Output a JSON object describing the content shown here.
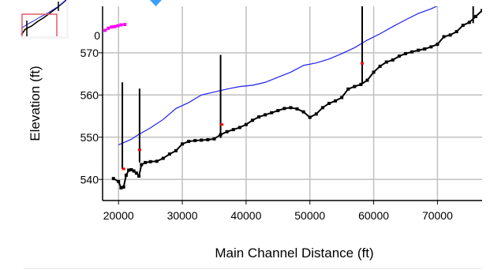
{
  "chart_data": {
    "type": "line",
    "xlabel": "Main Channel Distance (ft)",
    "ylabel": "Elevation (ft)",
    "xlim": [
      17500,
      77000
    ],
    "ylim": [
      535,
      581
    ],
    "grid": true,
    "x_ticks": [
      "20000",
      "30000",
      "40000",
      "50000",
      "60000",
      "70000"
    ],
    "y_ticks": [
      "540",
      "550",
      "560",
      "570"
    ],
    "y_tick_partial": "0",
    "colors": {
      "ws": "#1f1ff0",
      "ground": "#000000",
      "marker": "#ff0000",
      "inset_marker": "#ff00ff",
      "inset_box": "#e05a6a",
      "frame": "#000000"
    },
    "series": [
      {
        "key": "water_surface",
        "x": [
          20000,
          22000,
          23000,
          25000,
          27000,
          29000,
          31000,
          33000,
          35000,
          37000,
          39000,
          41000,
          43000,
          45000,
          47000,
          49000,
          51000,
          53000,
          55000,
          57000,
          59000,
          61000,
          63000,
          65000,
          67000,
          69000,
          71000,
          73000,
          75000
        ],
        "y": [
          548.2,
          549.5,
          550.5,
          552.2,
          554.2,
          556.8,
          558.2,
          560.0,
          560.7,
          561.4,
          562.0,
          562.3,
          563.0,
          564.2,
          565.4,
          567.0,
          567.6,
          568.5,
          569.8,
          571.2,
          573.0,
          574.5,
          576.2,
          577.8,
          579.3,
          580.4,
          581.8,
          583.4,
          585.1
        ]
      },
      {
        "key": "ground",
        "x": [
          19200,
          20000,
          20400,
          20800,
          21200,
          21600,
          22000,
          22400,
          22800,
          23200,
          23600,
          24200,
          25000,
          26000,
          27000,
          28000,
          29000,
          30000,
          31000,
          32000,
          33000,
          34000,
          35000,
          36000,
          37000,
          38000,
          39000,
          40000,
          41000,
          42000,
          43000,
          44000,
          45000,
          46000,
          47000,
          48000,
          49000,
          50000,
          51000,
          52000,
          53000,
          54000,
          55000,
          56000,
          57000,
          58000,
          59000,
          60000,
          61000,
          62000,
          63000,
          64000,
          65000,
          66000,
          67000,
          68000,
          69000,
          70000,
          71000,
          72000,
          73000,
          74000,
          75000,
          76000,
          77000
        ],
        "y": [
          540.2,
          539.5,
          538.0,
          538.2,
          541.0,
          542.2,
          542.3,
          542.0,
          541.5,
          540.8,
          543.5,
          544.0,
          544.2,
          544.3,
          545.0,
          546.0,
          546.8,
          548.4,
          549.0,
          549.2,
          549.3,
          549.4,
          549.6,
          550.6,
          551.3,
          551.8,
          552.3,
          553.0,
          554.0,
          554.8,
          555.3,
          555.8,
          556.3,
          556.8,
          557.0,
          556.7,
          556.0,
          554.7,
          555.5,
          557.0,
          558.0,
          558.6,
          559.4,
          561.4,
          562.0,
          562.5,
          563.5,
          565.4,
          566.8,
          567.8,
          568.3,
          569.2,
          569.8,
          570.2,
          570.6,
          570.9,
          571.4,
          572.0,
          573.8,
          574.2,
          575.0,
          576.5,
          577.2,
          578.6,
          580.0
        ]
      }
    ],
    "vertical_lines": [
      {
        "x": 20600,
        "y_low": 542.5,
        "y_high": 563.0
      },
      {
        "x": 23300,
        "y_low": 544.0,
        "y_high": 561.5
      },
      {
        "x": 36000,
        "y_low": 549.8,
        "y_high": 569.5
      },
      {
        "x": 58200,
        "y_low": 562.5,
        "y_high": 581.7
      },
      {
        "x": 75600,
        "y_low": 577.0,
        "y_high": 587.0
      }
    ],
    "red_markers": [
      {
        "x": 20800,
        "y": 542.5
      },
      {
        "x": 23300,
        "y": 547.0
      },
      {
        "x": 36200,
        "y": 553.0
      },
      {
        "x": 58200,
        "y": 567.5
      },
      {
        "x": 75700,
        "y": 585.0
      }
    ],
    "inset_points": [
      {
        "x": 17900,
        "y": 575.3
      },
      {
        "x": 18400,
        "y": 575.8
      },
      {
        "x": 18900,
        "y": 576.1
      },
      {
        "x": 19400,
        "y": 576.2
      },
      {
        "x": 19900,
        "y": 576.4
      },
      {
        "x": 20400,
        "y": 576.6
      },
      {
        "x": 21000,
        "y": 576.7
      }
    ]
  }
}
